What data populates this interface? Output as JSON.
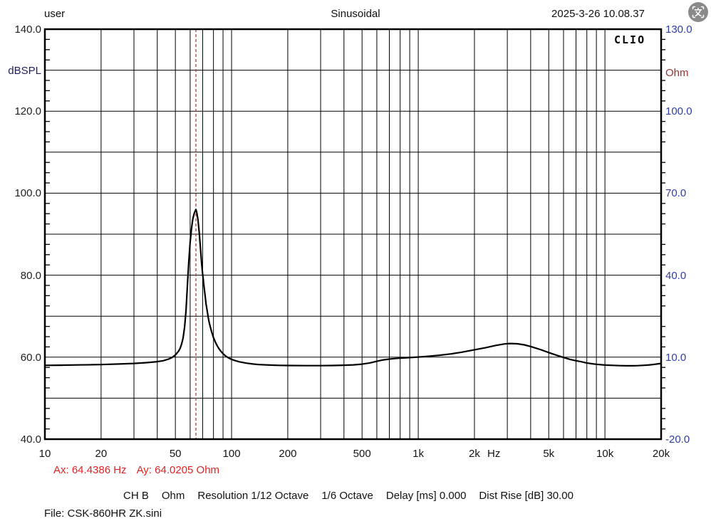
{
  "header": {
    "user_label": "user",
    "title": "Sinusoidal",
    "datetime": "2025-3-26 10.08.37",
    "icon": "screen-translate-icon"
  },
  "watermark": "CLIO",
  "cursor_readout": {
    "ax": "Ax: 64.4386 Hz",
    "ay": "Ay: 64.0205 Ohm"
  },
  "status_bar": {
    "segments": [
      "CH B",
      "Ohm",
      "Resolution 1/12 Octave",
      "1/6 Octave",
      "Delay [ms] 0.000",
      "Dist Rise [dB] 30.00"
    ]
  },
  "file_label": "File: CSK-860HR ZK.sini",
  "colors": {
    "grid": "#000000",
    "border": "#000000",
    "curve": "#000000",
    "cursor_line": "#b43c3c",
    "readout_red": "#e02424",
    "left_axis_num": "#1e1e1e",
    "left_axis_unit": "#20205e",
    "right_axis_num": "#2e3da6",
    "right_axis_unit": "#9b3232",
    "icon_bg": "#8a8a8a"
  },
  "chart_data": {
    "type": "line",
    "title": "Sinusoidal",
    "x_scale": "log",
    "x_range": [
      10,
      20000
    ],
    "x_unit": "Hz",
    "x_unit_pos_hz": 2540,
    "x_ticks": [
      {
        "f": 10,
        "label": "10"
      },
      {
        "f": 20,
        "label": "20"
      },
      {
        "f": 50,
        "label": "50"
      },
      {
        "f": 100,
        "label": "100"
      },
      {
        "f": 200,
        "label": "200"
      },
      {
        "f": 500,
        "label": "500"
      },
      {
        "f": 1000,
        "label": "1k"
      },
      {
        "f": 2000,
        "label": "2k"
      },
      {
        "f": 5000,
        "label": "5k"
      },
      {
        "f": 10000,
        "label": "10k"
      },
      {
        "f": 20000,
        "label": "20k"
      }
    ],
    "left_axis": {
      "unit": "dBSPL",
      "unit_at": 130,
      "range": [
        40,
        140
      ],
      "ticks": [
        {
          "v": 140,
          "label": "140.0"
        },
        {
          "v": 120,
          "label": "120.0"
        },
        {
          "v": 100,
          "label": "100.0"
        },
        {
          "v": 80,
          "label": "80.0"
        },
        {
          "v": 60,
          "label": "60.0"
        },
        {
          "v": 40,
          "label": "40.0"
        }
      ],
      "grid_step": 10,
      "minor_tick_step": 2.5
    },
    "right_axis": {
      "unit": "Ohm",
      "unit_at": 114,
      "range": [
        -20,
        130
      ],
      "ticks": [
        {
          "v": 130,
          "label": "130.0"
        },
        {
          "v": 100,
          "label": "100.0"
        },
        {
          "v": 70,
          "label": "70.0"
        },
        {
          "v": 40,
          "label": "40.0"
        },
        {
          "v": 10,
          "label": "10.0"
        },
        {
          "v": -20,
          "label": "-20.0"
        }
      ]
    },
    "cursor": {
      "ax_hz": 64.4386,
      "ay_ohm": 64.0205
    },
    "series": [
      {
        "name": "impedance",
        "unit": "Ohm",
        "color": "#000000",
        "points": [
          [
            10,
            7.0
          ],
          [
            12,
            7.05
          ],
          [
            15,
            7.15
          ],
          [
            18,
            7.25
          ],
          [
            20,
            7.3
          ],
          [
            25,
            7.5
          ],
          [
            30,
            7.7
          ],
          [
            35,
            8.0
          ],
          [
            40,
            8.35
          ],
          [
            43,
            8.7
          ],
          [
            46,
            9.3
          ],
          [
            48,
            9.9
          ],
          [
            50,
            10.8
          ],
          [
            52,
            12.2
          ],
          [
            53,
            13.2
          ],
          [
            54,
            14.8
          ],
          [
            55,
            17
          ],
          [
            56,
            21
          ],
          [
            57,
            27
          ],
          [
            58,
            36
          ],
          [
            59,
            45
          ],
          [
            60,
            52
          ],
          [
            61,
            57
          ],
          [
            62,
            60.5
          ],
          [
            63,
            62.5
          ],
          [
            64,
            63.7
          ],
          [
            64.44,
            64.02
          ],
          [
            65,
            63.2
          ],
          [
            66,
            60.5
          ],
          [
            67,
            56
          ],
          [
            68,
            50.5
          ],
          [
            69,
            45
          ],
          [
            70,
            40.5
          ],
          [
            71,
            36.5
          ],
          [
            72,
            33
          ],
          [
            73,
            29.5
          ],
          [
            74,
            27
          ],
          [
            75,
            24.5
          ],
          [
            76,
            22.5
          ],
          [
            78,
            19.5
          ],
          [
            80,
            17.2
          ],
          [
            82,
            15.4
          ],
          [
            84,
            14
          ],
          [
            86,
            12.9
          ],
          [
            88,
            12
          ],
          [
            90,
            11.3
          ],
          [
            93,
            10.4
          ],
          [
            96,
            9.8
          ],
          [
            100,
            9.2
          ],
          [
            105,
            8.7
          ],
          [
            110,
            8.3
          ],
          [
            120,
            7.8
          ],
          [
            130,
            7.5
          ],
          [
            140,
            7.3
          ],
          [
            160,
            7.1
          ],
          [
            180,
            7.0
          ],
          [
            200,
            6.95
          ],
          [
            250,
            6.9
          ],
          [
            300,
            6.9
          ],
          [
            350,
            6.95
          ],
          [
            400,
            7.05
          ],
          [
            450,
            7.2
          ],
          [
            500,
            7.45
          ],
          [
            550,
            7.9
          ],
          [
            600,
            8.5
          ],
          [
            650,
            9.0
          ],
          [
            700,
            9.3
          ],
          [
            750,
            9.5
          ],
          [
            800,
            9.65
          ],
          [
            900,
            9.85
          ],
          [
            1000,
            10.05
          ],
          [
            1100,
            10.25
          ],
          [
            1300,
            10.7
          ],
          [
            1500,
            11.2
          ],
          [
            1700,
            11.8
          ],
          [
            2000,
            12.7
          ],
          [
            2300,
            13.5
          ],
          [
            2600,
            14.3
          ],
          [
            2900,
            14.85
          ],
          [
            3100,
            15.0
          ],
          [
            3400,
            14.9
          ],
          [
            3700,
            14.5
          ],
          [
            4000,
            13.9
          ],
          [
            4500,
            12.8
          ],
          [
            5000,
            11.7
          ],
          [
            5500,
            10.7
          ],
          [
            6000,
            9.9
          ],
          [
            6500,
            9.2
          ],
          [
            7000,
            8.7
          ],
          [
            7500,
            8.3
          ],
          [
            8000,
            7.9
          ],
          [
            8500,
            7.6
          ],
          [
            9000,
            7.4
          ],
          [
            10000,
            7.1
          ],
          [
            11000,
            7.0
          ],
          [
            12000,
            6.9
          ],
          [
            13000,
            6.85
          ],
          [
            14000,
            6.85
          ],
          [
            15000,
            6.9
          ],
          [
            16000,
            7.0
          ],
          [
            17000,
            7.1
          ],
          [
            18000,
            7.3
          ],
          [
            19000,
            7.5
          ],
          [
            20000,
            7.7
          ]
        ]
      }
    ],
    "grid": {
      "vertical": "log-decades-1-to-9",
      "horizontal_step_db": 10
    },
    "legend": "none"
  }
}
